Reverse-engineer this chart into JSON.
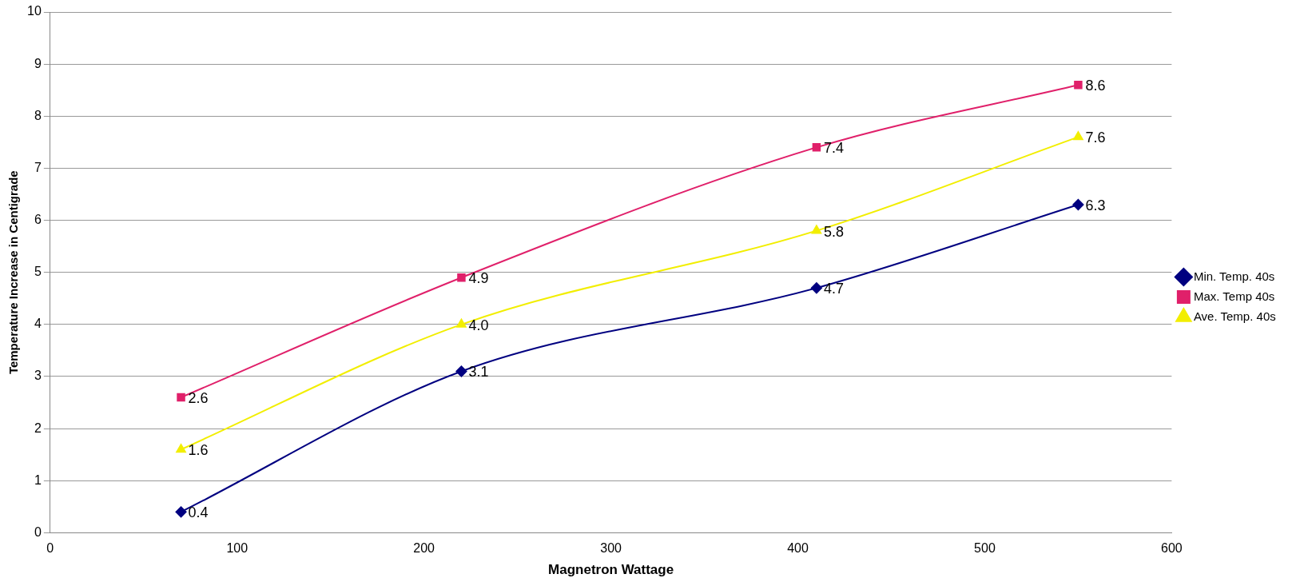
{
  "chart_data": {
    "type": "line",
    "xlabel": "Magnetron Wattage",
    "ylabel": "Temperature Increase in Centigrade",
    "x": [
      70,
      220,
      410,
      550
    ],
    "series": [
      {
        "name": "Min. Temp. 40s",
        "color": "#000080",
        "marker": "diamond",
        "values": [
          0.4,
          3.1,
          4.7,
          6.3
        ],
        "value_labels": [
          "0.4",
          "3.1",
          "4.7",
          "6.3"
        ]
      },
      {
        "name": "Max. Temp 40s",
        "color": "#e0206a",
        "marker": "square",
        "values": [
          2.6,
          4.9,
          7.4,
          8.6
        ],
        "value_labels": [
          "2.6",
          "4.9",
          "7.4",
          "8.6"
        ]
      },
      {
        "name": "Ave. Temp. 40s",
        "color": "#f2ee00",
        "marker": "triangle",
        "values": [
          1.6,
          4.0,
          5.8,
          7.6
        ],
        "value_labels": [
          "1.6",
          "4.0",
          "5.8",
          "7.6"
        ]
      }
    ],
    "xlim": [
      0,
      600
    ],
    "xticks": [
      0,
      100,
      200,
      300,
      400,
      500,
      600
    ],
    "ylim": [
      0,
      10
    ],
    "yticks": [
      0,
      1,
      2,
      3,
      4,
      5,
      6,
      7,
      8,
      9,
      10
    ],
    "grid": "y",
    "legend": "right"
  }
}
